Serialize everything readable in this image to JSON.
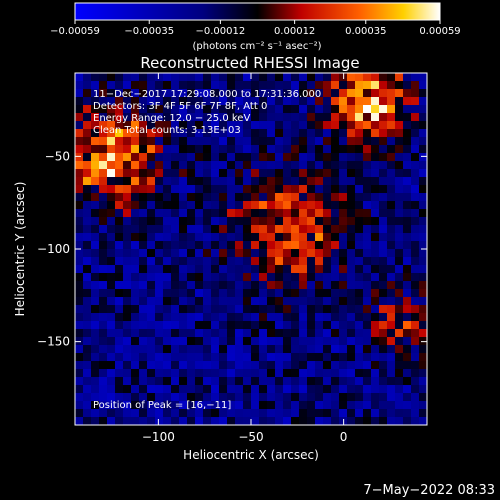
{
  "chart_data": {
    "type": "heatmap",
    "title": "Reconstructed RHESSI Image",
    "xlabel": "Heliocentric X (arcsec)",
    "ylabel": "Heliocentric Y (arcsec)",
    "xlim": [
      -145,
      45
    ],
    "ylim": [
      -195,
      -5
    ],
    "x_ticks": [
      -100,
      -50,
      0
    ],
    "x_tick_labels": [
      "−100",
      "−50",
      "0"
    ],
    "y_ticks": [
      -50,
      -100,
      -150
    ],
    "y_tick_labels": [
      "−50",
      "−100",
      "−150"
    ],
    "colorbar": {
      "range": [
        -0.00059,
        0.00059
      ],
      "ticks": [
        -0.00059,
        -0.00035,
        -0.00012,
        0.00012,
        0.00035,
        0.00059
      ],
      "tick_labels": [
        "−0.00059",
        "−0.00035",
        "−0.00012",
        "0.00012",
        "0.00035",
        "0.00059"
      ],
      "units_label": "(photons cm⁻² s⁻¹ asec⁻²)"
    },
    "annotations": {
      "time": "11−Dec−2017 17:29:08.000 to 17:31:36.000",
      "detectors": "Detectors: 3F 4F 5F 6F 7F 8F, Att 0",
      "energy": "Energy Range: 12.0 − 25.0 keV",
      "clean": "Clean     Total counts: 3.13E+03",
      "peak": "Position of Peak = [16,−11]"
    },
    "hot_regions": [
      {
        "x": -125,
        "y": -50,
        "spread": 25,
        "intensity": 0.00059
      },
      {
        "x": 15,
        "y": -20,
        "spread": 22,
        "intensity": 0.00059
      },
      {
        "x": -30,
        "y": -90,
        "spread": 30,
        "intensity": 0.00045
      },
      {
        "x": 30,
        "y": -140,
        "spread": 18,
        "intensity": 0.0003
      }
    ]
  },
  "footer": {
    "date": "7−May−2022 08:33"
  }
}
